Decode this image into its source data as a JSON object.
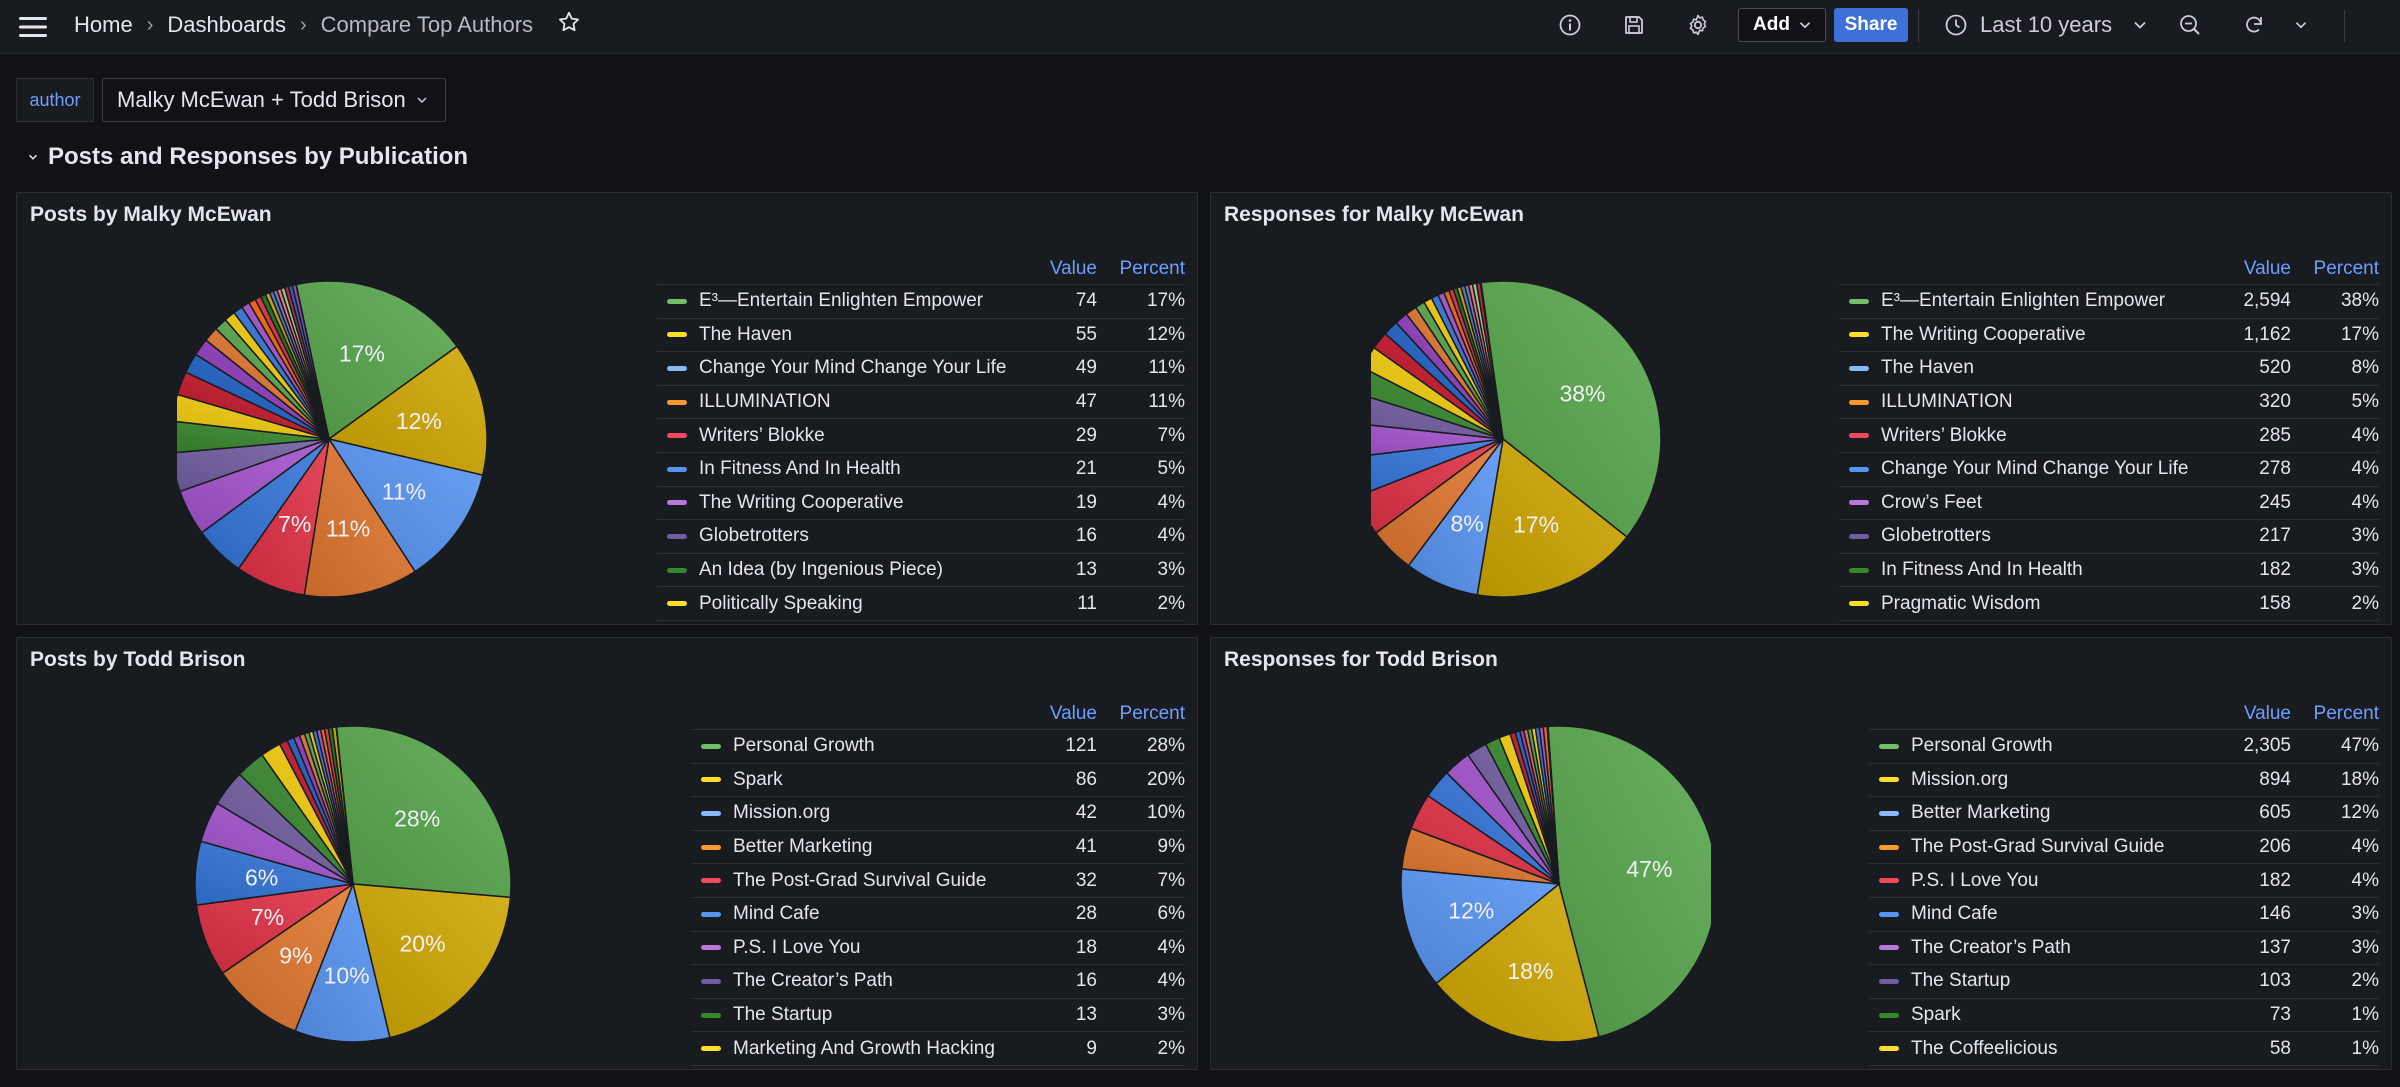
{
  "topbar": {
    "breadcrumb": {
      "home": "Home",
      "dashboards": "Dashboards",
      "current": "Compare Top Authors"
    },
    "add_label": "Add",
    "share_label": "Share",
    "time_range": "Last 10 years"
  },
  "variables": {
    "label": "author",
    "value": "Malky McEwan + Todd Brison"
  },
  "row": {
    "title": "Posts and Responses by Publication"
  },
  "legend_headers": {
    "value": "Value",
    "percent": "Percent"
  },
  "palette": [
    "#73bf69",
    "#fade2a",
    "#8ab8ff",
    "#ff9830",
    "#f2495c",
    "#5794f2",
    "#b877d9",
    "#705da0",
    "#37872d",
    "#fade2a"
  ],
  "panels": [
    {
      "title": "Posts by Malky McEwan",
      "pie_labels": [
        "17%",
        "12%",
        "11%",
        "11%",
        "7%"
      ],
      "legend": [
        {
          "name": "E³—Entertain Enlighten Empower",
          "value": "74",
          "percent": "17%"
        },
        {
          "name": "The Haven",
          "value": "55",
          "percent": "12%"
        },
        {
          "name": "Change Your Mind Change Your Life",
          "value": "49",
          "percent": "11%"
        },
        {
          "name": "ILLUMINATION",
          "value": "47",
          "percent": "11%"
        },
        {
          "name": "Writers’ Blokke",
          "value": "29",
          "percent": "7%"
        },
        {
          "name": "In Fitness And In Health",
          "value": "21",
          "percent": "5%"
        },
        {
          "name": "The Writing Cooperative",
          "value": "19",
          "percent": "4%"
        },
        {
          "name": "Globetrotters",
          "value": "16",
          "percent": "4%"
        },
        {
          "name": "An Idea (by Ingenious Piece)",
          "value": "13",
          "percent": "3%"
        },
        {
          "name": "Politically Speaking",
          "value": "11",
          "percent": "2%"
        }
      ]
    },
    {
      "title": "Responses for Malky McEwan",
      "pie_labels": [
        "38%",
        "17%",
        "8%"
      ],
      "legend": [
        {
          "name": "E³—Entertain Enlighten Empower",
          "value": "2,594",
          "percent": "38%"
        },
        {
          "name": "The Writing Cooperative",
          "value": "1,162",
          "percent": "17%"
        },
        {
          "name": "The Haven",
          "value": "520",
          "percent": "8%"
        },
        {
          "name": "ILLUMINATION",
          "value": "320",
          "percent": "5%"
        },
        {
          "name": "Writers’ Blokke",
          "value": "285",
          "percent": "4%"
        },
        {
          "name": "Change Your Mind Change Your Life",
          "value": "278",
          "percent": "4%"
        },
        {
          "name": "Crow’s Feet",
          "value": "245",
          "percent": "4%"
        },
        {
          "name": "Globetrotters",
          "value": "217",
          "percent": "3%"
        },
        {
          "name": "In Fitness And In Health",
          "value": "182",
          "percent": "3%"
        },
        {
          "name": "Pragmatic Wisdom",
          "value": "158",
          "percent": "2%"
        }
      ]
    },
    {
      "title": "Posts by Todd Brison",
      "pie_labels": [
        "28%",
        "20%",
        "10%",
        "9%",
        "7%",
        "6%"
      ],
      "legend": [
        {
          "name": "Personal Growth",
          "value": "121",
          "percent": "28%"
        },
        {
          "name": "Spark",
          "value": "86",
          "percent": "20%"
        },
        {
          "name": "Mission.org",
          "value": "42",
          "percent": "10%"
        },
        {
          "name": "Better Marketing",
          "value": "41",
          "percent": "9%"
        },
        {
          "name": "The Post-Grad Survival Guide",
          "value": "32",
          "percent": "7%"
        },
        {
          "name": "Mind Cafe",
          "value": "28",
          "percent": "6%"
        },
        {
          "name": "P.S. I Love You",
          "value": "18",
          "percent": "4%"
        },
        {
          "name": "The Creator’s Path",
          "value": "16",
          "percent": "4%"
        },
        {
          "name": "The Startup",
          "value": "13",
          "percent": "3%"
        },
        {
          "name": "Marketing And Growth Hacking",
          "value": "9",
          "percent": "2%"
        }
      ]
    },
    {
      "title": "Responses for Todd Brison",
      "pie_labels": [
        "47%",
        "18%",
        "12%"
      ],
      "legend": [
        {
          "name": "Personal Growth",
          "value": "2,305",
          "percent": "47%"
        },
        {
          "name": "Mission.org",
          "value": "894",
          "percent": "18%"
        },
        {
          "name": "Better Marketing",
          "value": "605",
          "percent": "12%"
        },
        {
          "name": "The Post-Grad Survival Guide",
          "value": "206",
          "percent": "4%"
        },
        {
          "name": "P.S. I Love You",
          "value": "182",
          "percent": "4%"
        },
        {
          "name": "Mind Cafe",
          "value": "146",
          "percent": "3%"
        },
        {
          "name": "The Creator’s Path",
          "value": "137",
          "percent": "3%"
        },
        {
          "name": "The Startup",
          "value": "103",
          "percent": "2%"
        },
        {
          "name": "Spark",
          "value": "73",
          "percent": "1%"
        },
        {
          "name": "The Coffeelicious",
          "value": "58",
          "percent": "1%"
        }
      ]
    }
  ]
}
